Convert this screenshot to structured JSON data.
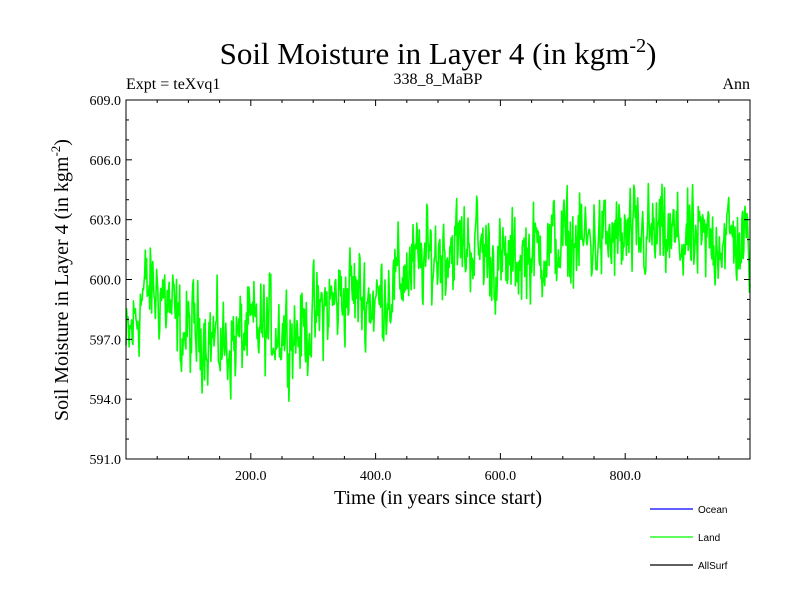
{
  "chart_data": {
    "type": "line",
    "title": "Soil Moisture in Layer 4 (in kgm",
    "title_sup": "-2",
    "title_close": ")",
    "subtitle_left": "Expt = teXvq1",
    "subtitle_center": "338_8_MaBP",
    "subtitle_right": "Ann",
    "xlabel": "Time (in years since start)",
    "ylabel": "Soil Moisture in Layer 4 (in kgm",
    "ylabel_sup": "-2",
    "ylabel_close": ")",
    "xlim": [
      0,
      1000
    ],
    "ylim": [
      591,
      609
    ],
    "xticks": [
      200,
      400,
      600,
      800
    ],
    "xtick_labels": [
      "200.0",
      "400.0",
      "600.0",
      "800.0"
    ],
    "yticks": [
      591,
      594,
      597,
      600,
      603,
      606,
      609
    ],
    "ytick_labels": [
      "591.0",
      "594.0",
      "597.0",
      "600.0",
      "603.0",
      "606.0",
      "609.0"
    ],
    "trend_anchors": {
      "x": [
        0,
        30,
        60,
        90,
        120,
        160,
        200,
        240,
        280,
        320,
        360,
        400,
        440,
        480,
        520,
        560,
        600,
        640,
        680,
        720,
        760,
        800,
        840,
        880,
        920,
        960,
        1000
      ],
      "y": [
        596.5,
        599.5,
        599.3,
        597.2,
        597.5,
        596.6,
        597.5,
        597.6,
        597.3,
        598.6,
        599.5,
        598.8,
        600.2,
        601.0,
        601.6,
        601.8,
        600.6,
        601.2,
        601.7,
        601.9,
        602.0,
        601.9,
        602.2,
        602.0,
        601.7,
        602.2,
        601.6
      ]
    },
    "noise_amplitude": 1.1,
    "series": [
      {
        "name": "Ocean",
        "color": "#0000ff",
        "plotted": false
      },
      {
        "name": "Land",
        "color": "#00ff00",
        "plotted": true
      },
      {
        "name": "AllSurf",
        "color": "#000000",
        "plotted": false
      }
    ]
  }
}
